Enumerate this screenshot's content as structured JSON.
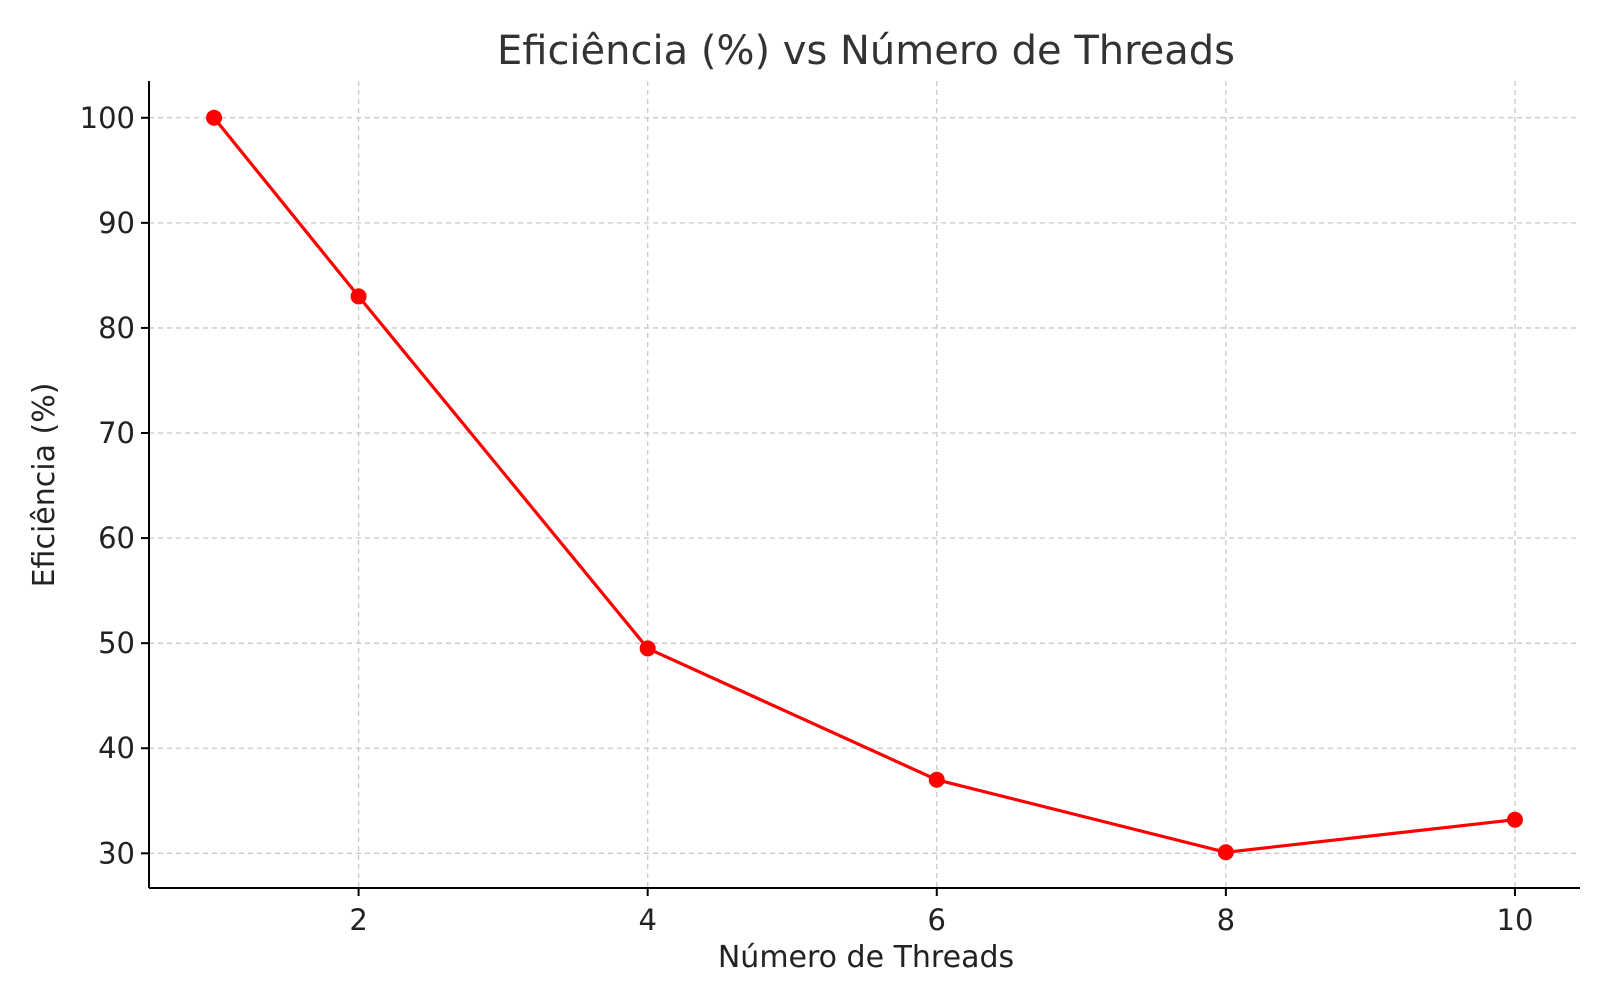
{
  "chart_data": {
    "type": "line",
    "title": "Eficiência (%) vs Número de Threads",
    "xlabel": "Número de Threads",
    "ylabel": "Eficiência (%)",
    "x": [
      1,
      2,
      4,
      6,
      8,
      10
    ],
    "series": [
      {
        "values": [
          100,
          83,
          49.5,
          37,
          30.1,
          33.2
        ],
        "color": "#ff0000",
        "marker": "circle"
      }
    ],
    "xlim": [
      0.55,
      10.45
    ],
    "ylim": [
      26.7,
      103.5
    ],
    "xticks": [
      2,
      4,
      6,
      8,
      10
    ],
    "yticks": [
      30,
      40,
      50,
      60,
      70,
      80,
      90,
      100
    ],
    "grid": true
  }
}
